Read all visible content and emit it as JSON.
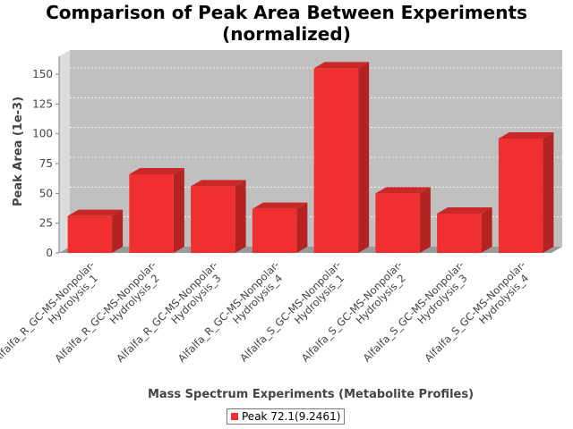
{
  "chart_data": {
    "type": "bar",
    "title_line1": "Comparison of Peak Area Between Experiments",
    "title_line2": "(normalized)",
    "xlabel": "Mass Spectrum Experiments (Metabolite Profiles)",
    "ylabel": "Peak Area (1e-3)",
    "ylim": [
      0,
      165
    ],
    "yticks": [
      0,
      25,
      50,
      75,
      100,
      125,
      150
    ],
    "grid": true,
    "legend_position": "bottom",
    "categories": [
      [
        "Alfalfa_R_GC-MS-Nonpolar-",
        "Hydrolysis_1"
      ],
      [
        "Alfalfa_R_GC-MS-Nonpolar-",
        "Hydrolysis_2"
      ],
      [
        "Alfalfa_R_GC-MS-Nonpolar-",
        "Hydrolysis_3"
      ],
      [
        "Alfalfa_R_GC-MS-Nonpolar-",
        "Hydrolysis_4"
      ],
      [
        "Alfalfa_S_GC-MS-Nonpolar-",
        "Hydrolysis_1"
      ],
      [
        "Alfalfa_S_GC-MS-Nonpolar-",
        "Hydrolysis_2"
      ],
      [
        "Alfalfa_S_GC-MS-Nonpolar-",
        "Hydrolysis_3"
      ],
      [
        "Alfalfa_S_GC-MS-Nonpolar-",
        "Hydrolysis_4"
      ]
    ],
    "series": [
      {
        "name": "Peak 72.1(9.2461)",
        "color": "#f03030",
        "values": [
          31,
          66,
          56,
          37,
          155,
          50,
          33,
          96
        ]
      }
    ],
    "colors": {
      "plot_background": "#c0c0c0",
      "wall_side": "#dcdcdc",
      "floor": "#9a9a9a",
      "bar_front": "#f03030",
      "bar_top": "#c82828",
      "bar_side": "#b42222"
    }
  }
}
